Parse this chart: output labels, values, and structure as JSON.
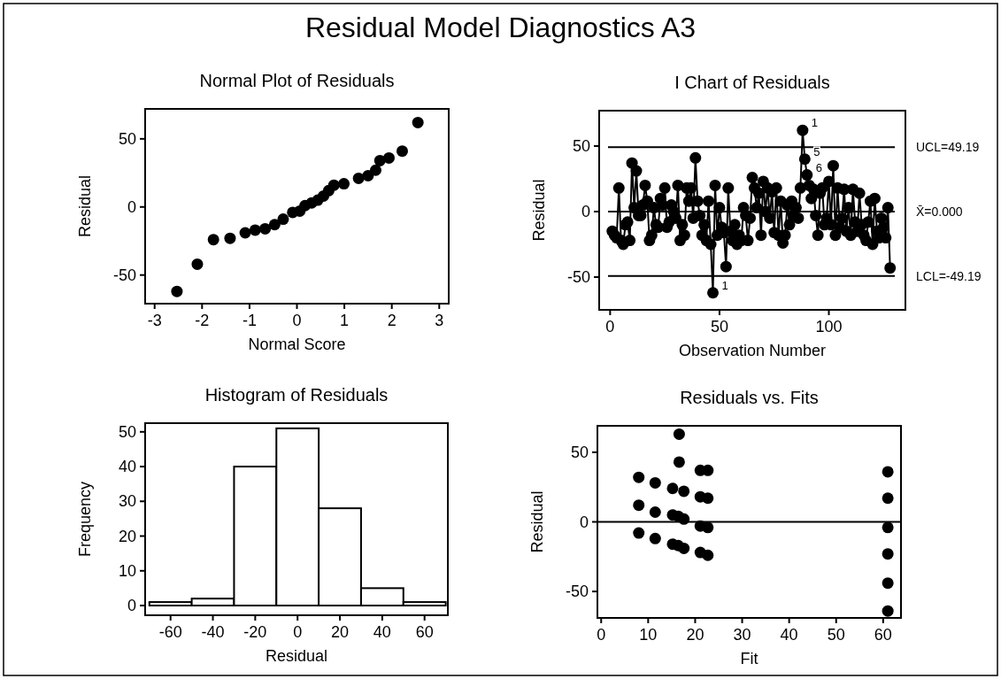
{
  "chart_data": [
    {
      "type": "other",
      "title": "Residual Model Diagnostics A3"
    },
    {
      "type": "scatter",
      "title": "Normal Plot of Residuals",
      "xlabel": "Normal Score",
      "ylabel": "Residual",
      "xlim": [
        -3.2,
        3.2
      ],
      "ylim": [
        -71,
        72
      ],
      "xticks": [
        -3,
        -2,
        -1,
        0,
        1,
        2,
        3
      ],
      "yticks": [
        -50,
        0,
        50
      ],
      "marker": "circle",
      "color": "#000000",
      "x": [
        -2.53,
        -2.1,
        -1.76,
        -1.41,
        -1.09,
        -0.88,
        -0.67,
        -0.47,
        -0.29,
        -0.09,
        0.06,
        0.17,
        0.31,
        0.44,
        0.56,
        0.67,
        0.78,
        0.99,
        1.3,
        1.5,
        1.66,
        1.75,
        1.94,
        2.22,
        2.55
      ],
      "values": [
        -62,
        -42,
        -24,
        -23,
        -19,
        -17,
        -16,
        -13,
        -9,
        -4,
        -3,
        1,
        3,
        5,
        8,
        12,
        16,
        17,
        21,
        23,
        27,
        34,
        36,
        41,
        62
      ]
    },
    {
      "type": "line",
      "title": "I Chart of Residuals",
      "xlabel": "Observation Number",
      "ylabel": "Residual",
      "xlim": [
        -5,
        135
      ],
      "ylim": [
        -75,
        77
      ],
      "xticks": [
        0,
        50,
        100
      ],
      "yticks": [
        -50,
        0,
        50
      ],
      "marker": "circle",
      "color": "#000000",
      "x": [
        1,
        2,
        3,
        4,
        5,
        6,
        7,
        8,
        9,
        10,
        11,
        12,
        13,
        14,
        15,
        16,
        17,
        18,
        19,
        20,
        21,
        22,
        23,
        24,
        25,
        26,
        27,
        28,
        29,
        30,
        31,
        32,
        33,
        34,
        35,
        36,
        37,
        38,
        39,
        40,
        41,
        42,
        43,
        44,
        45,
        46,
        47,
        48,
        49,
        50,
        51,
        52,
        53,
        54,
        55,
        56,
        57,
        58,
        59,
        60,
        61,
        62,
        63,
        64,
        65,
        66,
        67,
        68,
        69,
        70,
        71,
        72,
        73,
        74,
        75,
        76,
        77,
        78,
        79,
        80,
        81,
        82,
        83,
        84,
        85,
        86,
        87,
        88,
        89,
        90,
        91,
        92,
        93,
        94,
        95,
        96,
        97,
        98,
        99,
        100,
        101,
        102,
        103,
        104,
        105,
        106,
        107,
        108,
        109,
        110,
        111,
        112,
        113,
        114,
        115,
        116,
        117,
        118,
        119,
        120,
        121,
        122,
        123,
        124,
        125,
        126,
        127,
        128
      ],
      "values": [
        -15,
        -18,
        -20,
        18,
        -22,
        -25,
        -10,
        -8,
        -22,
        37,
        3,
        31,
        -3,
        -3,
        5,
        20,
        8,
        -22,
        -18,
        3,
        -10,
        -12,
        10,
        5,
        18,
        -12,
        -8,
        5,
        0,
        -5,
        20,
        -22,
        -10,
        -18,
        18,
        8,
        18,
        -5,
        41,
        8,
        -3,
        -18,
        -10,
        -22,
        8,
        -25,
        -62,
        20,
        -18,
        3,
        -12,
        -16,
        -42,
        18,
        -15,
        -22,
        -10,
        -25,
        -18,
        -22,
        3,
        -3,
        -22,
        -5,
        26,
        18,
        3,
        14,
        -18,
        23,
        0,
        18,
        -5,
        15,
        -16,
        18,
        -18,
        8,
        -24,
        -18,
        5,
        -10,
        8,
        -3,
        3,
        -5,
        18,
        62,
        40,
        28,
        20,
        10,
        17,
        -3,
        -18,
        14,
        18,
        -10,
        -5,
        23,
        -10,
        35,
        -18,
        18,
        -12,
        -5,
        17,
        -15,
        3,
        -18,
        17,
        -8,
        -15,
        14,
        -10,
        -18,
        -22,
        -8,
        8,
        -25,
        10,
        -15,
        -20,
        -5,
        -12,
        -20,
        3,
        -43
      ],
      "ref_lines": [
        {
          "axis": "y",
          "value": 49.19,
          "label": "UCL=49.19"
        },
        {
          "axis": "y",
          "value": 0,
          "label": "X̄=0.000"
        },
        {
          "axis": "y",
          "value": -49.19,
          "label": "LCL=-49.19"
        }
      ],
      "annotations": [
        {
          "text": "1",
          "x": 88,
          "y": 62
        },
        {
          "text": "1",
          "x": 47,
          "y": -62
        },
        {
          "text": "5",
          "x": 89,
          "y": 40
        },
        {
          "text": "6",
          "x": 90,
          "y": 28
        }
      ]
    },
    {
      "type": "histogram",
      "title": "Histogram of Residuals",
      "xlabel": "Residual",
      "ylabel": "Frequency",
      "xlim": [
        -72,
        71
      ],
      "ylim": [
        -2.8,
        52.5
      ],
      "xticks": [
        -60,
        -40,
        -20,
        0,
        20,
        40,
        60
      ],
      "yticks": [
        0,
        10,
        20,
        30,
        40,
        50
      ],
      "color": "#ffffff",
      "bins": [
        -70,
        -50,
        -30,
        -10,
        10,
        30,
        50,
        70
      ],
      "values": [
        1,
        2,
        40,
        51,
        28,
        5,
        1
      ]
    },
    {
      "type": "scatter",
      "title": "Residuals vs. Fits",
      "xlabel": "Fit",
      "ylabel": "Residual",
      "xlim": [
        -0.8,
        63.8
      ],
      "ylim": [
        -69,
        69
      ],
      "xticks": [
        0,
        10,
        20,
        30,
        40,
        50,
        60
      ],
      "yticks": [
        -50,
        0,
        50
      ],
      "marker": "circle",
      "color": "#000000",
      "x": [
        8,
        8,
        8,
        11.5,
        11.5,
        11.5,
        15.2,
        15.2,
        15.2,
        16.6,
        16.6,
        16.4,
        16.4,
        17.6,
        17.6,
        17.6,
        21.1,
        21.1,
        21.1,
        21.1,
        22.7,
        22.7,
        22.7,
        22.7,
        61,
        61,
        61,
        61,
        61,
        61
      ],
      "values": [
        32,
        12,
        -8,
        28,
        7,
        -12,
        24,
        5,
        -16,
        63,
        43,
        4,
        -17,
        22,
        2,
        -19,
        37,
        18,
        -3,
        -22,
        37,
        17,
        -4,
        -24,
        36,
        17,
        -4,
        -23,
        -44,
        -64
      ],
      "ref_lines": [
        {
          "axis": "y",
          "value": 0
        }
      ]
    }
  ]
}
